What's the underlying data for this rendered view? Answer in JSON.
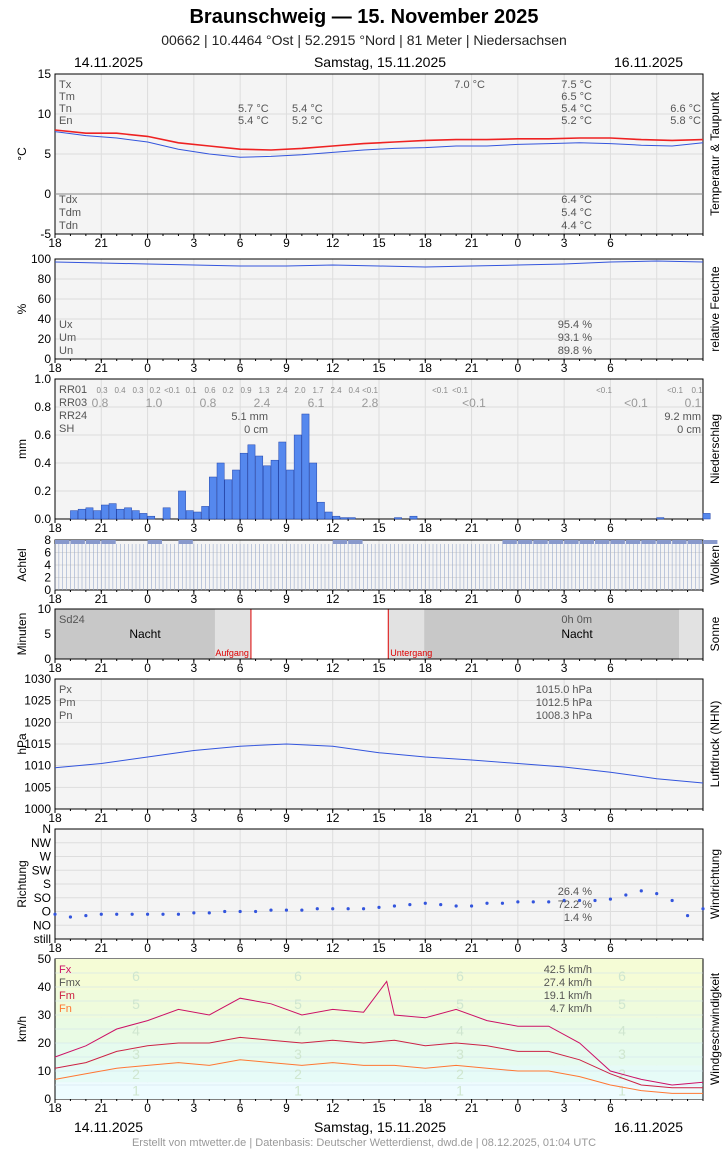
{
  "header": {
    "title": "Braunschweig  —  15. November 2025",
    "subtitle": "00662  |  10.4464 °Ost  |  52.2915 °Nord  |  81 Meter  |  Niedersachsen",
    "date_left": "14.11.2025",
    "date_center": "Samstag, 15.11.2025",
    "date_right": "16.11.2025"
  },
  "footer": "Erstellt von mtwetter.de | Datenbasis: Deutscher Wetterdienst, dwd.de | 08.12.2025, 01:04 UTC",
  "x_tick_labels": [
    "18",
    "21",
    "0",
    "3",
    "6",
    "9",
    "12",
    "15",
    "18",
    "21",
    "0",
    "3",
    "6"
  ],
  "colors": {
    "grid": "#dddddd",
    "line_blue": "#3355dd",
    "line_red": "#ee2222",
    "bar_blue": "#5588ee",
    "panel_bg": "#f4f4f4",
    "wind_magenta": "#cc1166",
    "wind_red": "#cc2244",
    "wind_orange": "#ff7733"
  },
  "chart_data": [
    {
      "id": "temp",
      "type": "line",
      "side_label": "Temperatur & Taupunkt",
      "ylabel": "°C",
      "ylim": [
        -5,
        15
      ],
      "yticks": [
        "-5",
        "0",
        "5",
        "10",
        "15"
      ],
      "stats_top": [
        {
          "label": "Tx",
          "v1": "",
          "v2": "7.0 °C",
          "v3": "7.5 °C",
          "v4": ""
        },
        {
          "label": "Tm",
          "v1": "",
          "v2": "",
          "v3": "6.5 °C",
          "v4": ""
        },
        {
          "label": "Tn",
          "v1": "5.7 °C",
          "v1b": "5.4 °C",
          "v2": "",
          "v3": "5.4 °C",
          "v4": "6.6 °C"
        },
        {
          "label": "En",
          "v1": "5.4 °C",
          "v1b": "5.2 °C",
          "v2": "",
          "v3": "5.2 °C",
          "v4": "5.8 °C"
        }
      ],
      "stats_bottom": [
        {
          "label": "Tdx",
          "value": "6.4 °C"
        },
        {
          "label": "Tdm",
          "value": "5.4 °C"
        },
        {
          "label": "Tdn",
          "value": "4.4 °C"
        }
      ],
      "series": [
        {
          "name": "Tm",
          "color": "#ee2222",
          "x": [
            18,
            20,
            22,
            24,
            26,
            28,
            30,
            32,
            34,
            36,
            38,
            40,
            42,
            44,
            46,
            48,
            50,
            52,
            54,
            56,
            58,
            60
          ],
          "values": [
            8.0,
            7.6,
            7.6,
            7.2,
            6.4,
            6.0,
            5.6,
            5.5,
            5.7,
            6.0,
            6.3,
            6.5,
            6.7,
            6.8,
            6.8,
            6.9,
            6.9,
            7.0,
            7.0,
            6.8,
            6.7,
            6.8
          ]
        },
        {
          "name": "Td",
          "color": "#3355dd",
          "x": [
            18,
            20,
            22,
            24,
            26,
            28,
            30,
            32,
            34,
            36,
            38,
            40,
            42,
            44,
            46,
            48,
            50,
            52,
            54,
            56,
            58,
            60
          ],
          "values": [
            7.8,
            7.3,
            7.0,
            6.5,
            5.6,
            5.0,
            4.6,
            4.7,
            4.9,
            5.2,
            5.5,
            5.7,
            5.8,
            6.0,
            6.0,
            6.2,
            6.3,
            6.4,
            6.3,
            6.1,
            6.0,
            6.4
          ]
        }
      ]
    },
    {
      "id": "humidity",
      "type": "line",
      "side_label": "relative Feuchte",
      "ylabel": "%",
      "ylim": [
        0,
        100
      ],
      "yticks": [
        "0",
        "20",
        "40",
        "60",
        "80",
        "100"
      ],
      "stats": [
        {
          "label": "Ux",
          "value": "95.4 %"
        },
        {
          "label": "Um",
          "value": "93.1 %"
        },
        {
          "label": "Un",
          "value": "89.8 %"
        }
      ],
      "series": [
        {
          "name": "U",
          "color": "#3355dd",
          "x": [
            18,
            21,
            24,
            27,
            30,
            33,
            36,
            39,
            42,
            45,
            48,
            51,
            54,
            57,
            60
          ],
          "values": [
            97,
            96,
            95,
            94,
            93,
            93,
            94,
            93,
            92,
            93,
            94,
            95,
            97,
            98,
            97
          ]
        }
      ]
    },
    {
      "id": "precip",
      "type": "bar",
      "side_label": "Niederschlag",
      "ylabel": "mm",
      "ylim": [
        0,
        1.0
      ],
      "yticks": [
        "0.0",
        "0.2",
        "0.4",
        "0.6",
        "0.8",
        "1.0"
      ],
      "rr01_label": "RR01",
      "rr03_label": "RR03",
      "rr24_label": "RR24",
      "sh_label": "SH",
      "rr24_values": [
        "5.1 mm",
        "9.2 mm"
      ],
      "sh_values": [
        "0 cm",
        "0 cm"
      ],
      "rr01_small": [
        "0.3",
        "0.4",
        "0.3",
        "0.2",
        "<0.1",
        "0.1",
        "0.6",
        "0.2",
        "0.9",
        "1.3",
        "2.4",
        "2.0",
        "1.7",
        "2.4",
        "0.4",
        "<0.1",
        "<0.1",
        "<0.1",
        "<0.1",
        "<0.1",
        "0.1"
      ],
      "rr03_values": [
        "0.8",
        "1.0",
        "0.8",
        "2.4",
        "6.1",
        "2.8",
        "<0.1",
        "<0.1",
        "0.1"
      ],
      "x": [
        19,
        19.5,
        20,
        20.5,
        21,
        21.5,
        22,
        22.5,
        23,
        23.5,
        24,
        25,
        26,
        26.5,
        27,
        27.5,
        28,
        28.5,
        29,
        29.5,
        30,
        30.5,
        31,
        31.5,
        32,
        32.5,
        33,
        33.5,
        34,
        34.5,
        35,
        35.5,
        36,
        36.5,
        37,
        40,
        41,
        57,
        60
      ],
      "values": [
        0.06,
        0.07,
        0.08,
        0.06,
        0.1,
        0.11,
        0.07,
        0.08,
        0.06,
        0.04,
        0.02,
        0.08,
        0.2,
        0.06,
        0.05,
        0.09,
        0.3,
        0.4,
        0.28,
        0.35,
        0.47,
        0.53,
        0.45,
        0.38,
        0.42,
        0.55,
        0.35,
        0.6,
        0.75,
        0.4,
        0.12,
        0.05,
        0.02,
        0.01,
        0.01,
        0.01,
        0.02,
        0.01,
        0.04
      ]
    },
    {
      "id": "clouds",
      "type": "bar",
      "side_label": "Wolken",
      "ylabel": "Achtel",
      "ylim": [
        0,
        8
      ],
      "yticks": [
        "0",
        "2",
        "4",
        "6",
        "8"
      ],
      "x": [
        18,
        19,
        20,
        21,
        22,
        23,
        24,
        25,
        26,
        27,
        28,
        29,
        30,
        31,
        32,
        33,
        34,
        35,
        36,
        37,
        38,
        39,
        40,
        41,
        42,
        43,
        44,
        45,
        46,
        47,
        48,
        49,
        50,
        51,
        52,
        53,
        54,
        55,
        56,
        57,
        58,
        59,
        60
      ],
      "values": [
        8,
        8,
        8,
        8,
        7,
        7,
        8,
        7,
        8,
        7,
        7,
        7,
        7,
        7,
        7,
        7,
        7,
        7,
        8,
        8,
        7,
        7,
        7,
        7,
        7,
        7,
        7,
        7,
        7,
        8,
        8,
        8,
        8,
        8,
        8,
        8,
        8,
        8,
        8,
        8,
        8,
        8,
        8
      ]
    },
    {
      "id": "sun",
      "type": "area",
      "side_label": "Sonne",
      "ylabel": "Minuten",
      "ylim": [
        0,
        10
      ],
      "yticks": [
        "0",
        "5",
        "10"
      ],
      "sd24_label": "Sd24",
      "sd24_value": "0h 0m",
      "night_label": "Nacht",
      "sunrise_label": "Aufgang",
      "sunset_label": "Untergang",
      "sunrise_x": 30.7,
      "sunset_x": 39.6
    },
    {
      "id": "pressure",
      "type": "line",
      "side_label": "Luftdruck (NHN)",
      "ylabel": "hPa",
      "ylim": [
        1000,
        1030
      ],
      "yticks": [
        "1000",
        "1005",
        "1010",
        "1015",
        "1020",
        "1025",
        "1030"
      ],
      "stats": [
        {
          "label": "Px",
          "value": "1015.0 hPa"
        },
        {
          "label": "Pm",
          "value": "1012.5 hPa"
        },
        {
          "label": "Pn",
          "value": "1008.3 hPa"
        }
      ],
      "series": [
        {
          "name": "P",
          "color": "#3355dd",
          "x": [
            18,
            21,
            24,
            27,
            30,
            33,
            36,
            39,
            42,
            45,
            48,
            51,
            54,
            57,
            60
          ],
          "values": [
            1009.5,
            1010.5,
            1012,
            1013.5,
            1014.5,
            1015,
            1014.5,
            1013,
            1012,
            1011.3,
            1010.5,
            1009.7,
            1008.5,
            1007,
            1006
          ]
        }
      ]
    },
    {
      "id": "winddir",
      "type": "scatter",
      "side_label": "Windrichtung",
      "ylabel": "Richtung",
      "yticks": [
        "still",
        "NO",
        "O",
        "SO",
        "S",
        "SW",
        "W",
        "NW",
        "N"
      ],
      "stats": [
        {
          "label": "",
          "value": "26.4 %"
        },
        {
          "label": "",
          "value": "72.2 %"
        },
        {
          "label": "",
          "value": "1.4 %"
        }
      ],
      "x": [
        18,
        19,
        20,
        21,
        22,
        23,
        24,
        25,
        26,
        27,
        28,
        29,
        30,
        31,
        32,
        33,
        34,
        35,
        36,
        37,
        38,
        39,
        40,
        41,
        42,
        43,
        44,
        45,
        46,
        47,
        48,
        49,
        50,
        51,
        52,
        53,
        54,
        55,
        56,
        57,
        58,
        59,
        60
      ],
      "values": [
        1.8,
        1.6,
        1.7,
        1.8,
        1.8,
        1.8,
        1.8,
        1.8,
        1.8,
        1.9,
        1.9,
        2.0,
        2.0,
        2.0,
        2.1,
        2.1,
        2.1,
        2.2,
        2.2,
        2.2,
        2.2,
        2.3,
        2.4,
        2.5,
        2.6,
        2.5,
        2.4,
        2.4,
        2.6,
        2.6,
        2.7,
        2.7,
        2.7,
        2.8,
        2.8,
        2.8,
        2.9,
        3.2,
        3.5,
        3.3,
        2.8,
        1.7,
        2.2
      ]
    },
    {
      "id": "windspeed",
      "type": "line",
      "side_label": "Windgeschwindigkeit",
      "ylabel": "km/h",
      "ylim": [
        0,
        50
      ],
      "yticks": [
        "0",
        "10",
        "20",
        "30",
        "40",
        "50"
      ],
      "bft_labels": [
        "1",
        "2",
        "3",
        "4",
        "5",
        "6"
      ],
      "stats": [
        {
          "label": "Fx",
          "value": "42.5 km/h"
        },
        {
          "label": "Fmx",
          "value": "27.4 km/h"
        },
        {
          "label": "Fm",
          "value": "19.1 km/h"
        },
        {
          "label": "Fn",
          "value": "4.7 km/h"
        }
      ],
      "series": [
        {
          "name": "Fx",
          "color": "#cc1166",
          "x": [
            18,
            20,
            22,
            24,
            26,
            28,
            30,
            32,
            34,
            36,
            38,
            39.5,
            40,
            42,
            44,
            46,
            48,
            50,
            52,
            54,
            56,
            58,
            60
          ],
          "values": [
            15,
            19,
            25,
            28,
            32,
            30,
            36,
            34,
            30,
            32,
            31,
            42,
            30,
            29,
            32,
            28,
            26,
            26,
            20,
            10,
            7,
            5,
            6
          ]
        },
        {
          "name": "Fmx",
          "color": "#cc2244",
          "x": [
            18,
            20,
            22,
            24,
            26,
            28,
            30,
            32,
            34,
            36,
            38,
            40,
            42,
            44,
            46,
            48,
            50,
            52,
            54,
            56,
            58,
            60
          ],
          "values": [
            11,
            13,
            17,
            19,
            20,
            20,
            22,
            21,
            20,
            21,
            20,
            21,
            19,
            20,
            19,
            17,
            17,
            14,
            9,
            5,
            4,
            4
          ]
        },
        {
          "name": "Fm",
          "color": "#ff7733",
          "x": [
            18,
            20,
            22,
            24,
            26,
            28,
            30,
            32,
            34,
            36,
            38,
            40,
            42,
            44,
            46,
            48,
            50,
            52,
            54,
            56,
            58,
            60
          ],
          "values": [
            7,
            9,
            11,
            12,
            13,
            12,
            14,
            13,
            12,
            13,
            12,
            12,
            11,
            12,
            11,
            10,
            10,
            8,
            5,
            3,
            2,
            2
          ]
        }
      ]
    }
  ]
}
